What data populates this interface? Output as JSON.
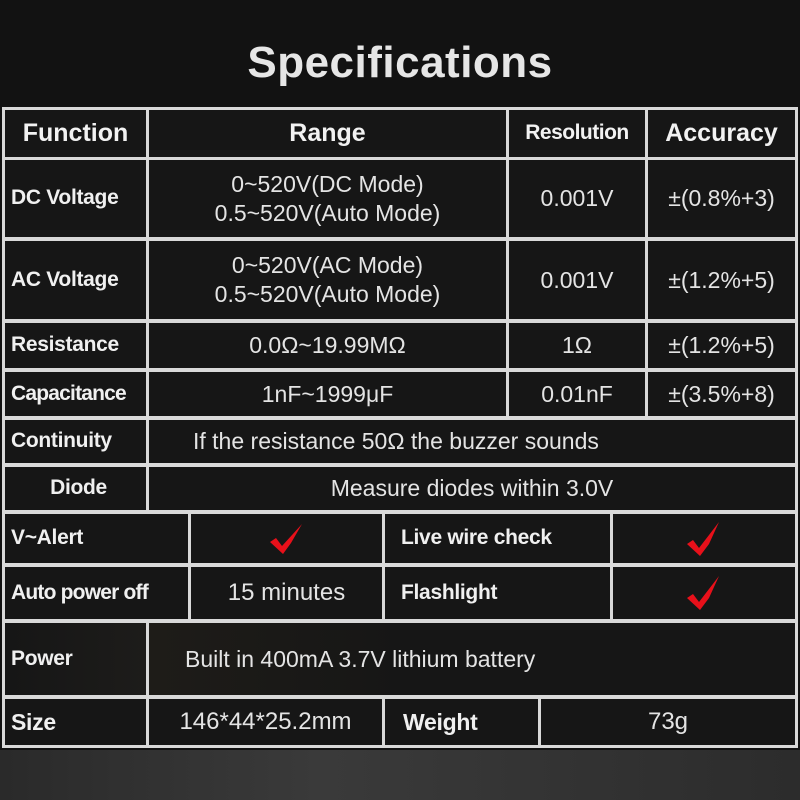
{
  "title": "Specifications",
  "headers": {
    "function": "Function",
    "range": "Range",
    "resolution": "Resolution",
    "accuracy": "Accuracy"
  },
  "rows": [
    {
      "function": "DC Voltage",
      "range": [
        "0~520V(DC Mode)",
        "0.5~520V(Auto Mode)"
      ],
      "resolution": "0.001V",
      "accuracy": "±(0.8%+3)"
    },
    {
      "function": "AC Voltage",
      "range": [
        "0~520V(AC Mode)",
        "0.5~520V(Auto Mode)"
      ],
      "resolution": "0.001V",
      "accuracy": "±(1.2%+5)"
    },
    {
      "function": "Resistance",
      "range": [
        "0.0Ω~19.99MΩ"
      ],
      "resolution": "1Ω",
      "accuracy": "±(1.2%+5)"
    },
    {
      "function": "Capacitance",
      "range": [
        "1nF~1999μF"
      ],
      "resolution": "0.01nF",
      "accuracy": "±(3.5%+8)"
    }
  ],
  "continuity": {
    "label": "Continuity",
    "value": "If the resistance 50Ω the buzzer sounds"
  },
  "diode": {
    "label": "Diode",
    "value": "Measure diodes within 3.0V"
  },
  "features": {
    "v_alert": {
      "label": "V~Alert",
      "supported": true
    },
    "live_wire": {
      "label": "Live wire check",
      "supported": true
    },
    "auto_power_off": {
      "label": "Auto power off",
      "value": "15 minutes"
    },
    "flashlight": {
      "label": "Flashlight",
      "supported": true
    }
  },
  "power": {
    "label": "Power",
    "value": "Built in 400mA 3.7V lithium battery"
  },
  "size": {
    "label": "Size",
    "value": "146*44*25.2mm"
  },
  "weight": {
    "label": "Weight",
    "value": "73g"
  },
  "colors": {
    "check": "#e8101a",
    "grid_lines": "#d9d9d9",
    "background": "#161616"
  },
  "icons": {
    "check": "checkmark-icon"
  }
}
